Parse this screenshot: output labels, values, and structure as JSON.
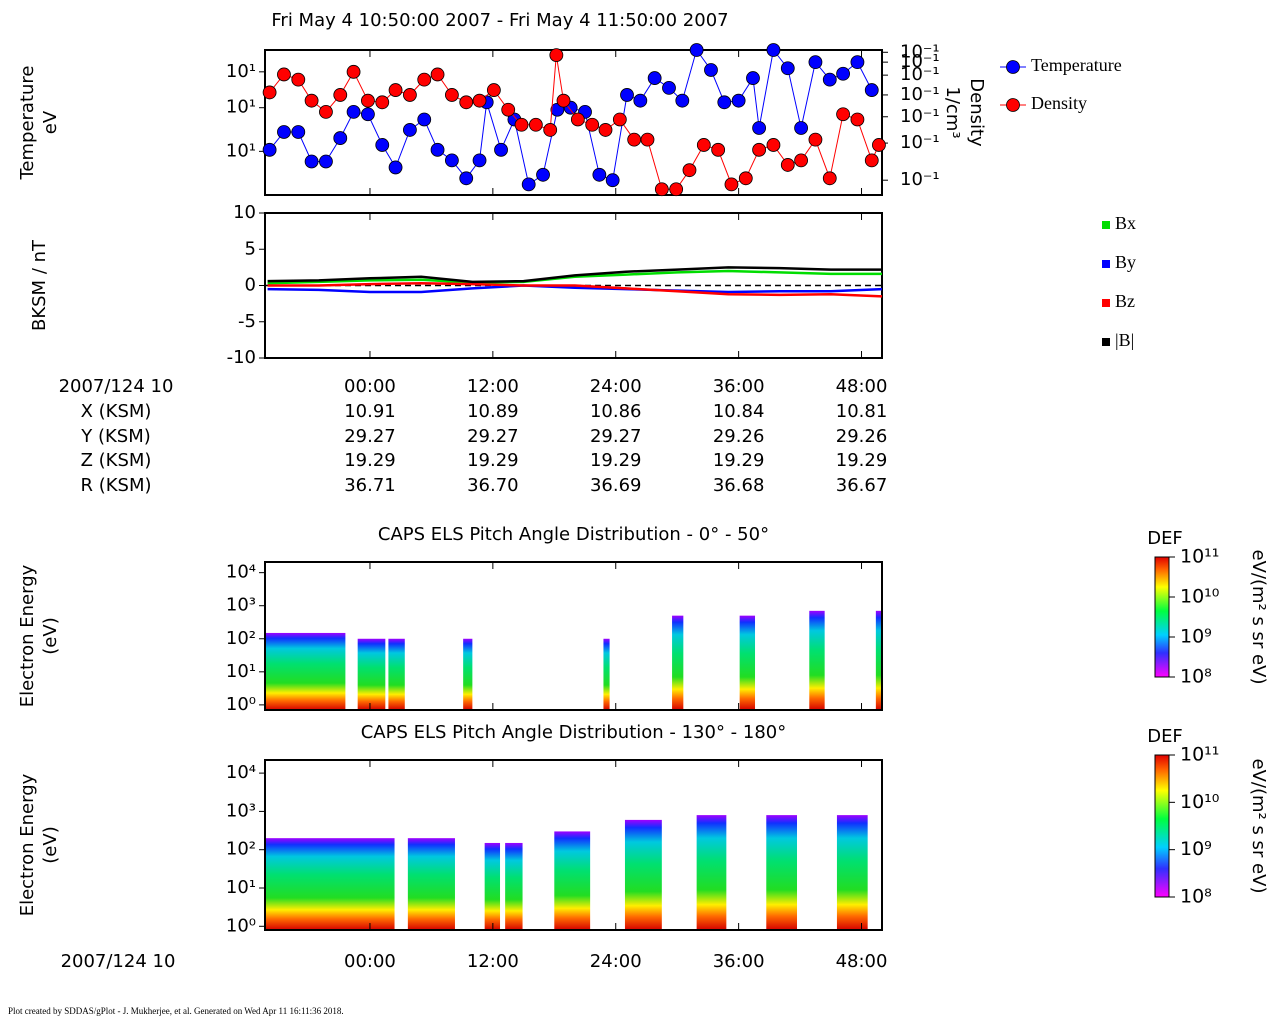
{
  "title": "Fri May 4 10:50:00 2007 - Fri May 4 11:50:00 2007",
  "footer": "Plot created by SDDAS/gPlot - J. Mukherjee, et al.  Generated on Wed Apr 11 16:11:36 2018.",
  "ephemeris": {
    "rows": [
      {
        "label": "2007/124 10",
        "values": [
          "00:00",
          "12:00",
          "24:00",
          "36:00",
          "48:00"
        ]
      },
      {
        "label": "X (KSM)",
        "values": [
          "10.91",
          "10.89",
          "10.86",
          "10.84",
          "10.81"
        ]
      },
      {
        "label": "Y (KSM)",
        "values": [
          "29.27",
          "29.27",
          "29.27",
          "29.26",
          "29.26"
        ]
      },
      {
        "label": "Z (KSM)",
        "values": [
          "19.29",
          "19.29",
          "19.29",
          "19.29",
          "19.29"
        ]
      },
      {
        "label": "R (KSM)",
        "values": [
          "36.71",
          "36.70",
          "36.69",
          "36.68",
          "36.67"
        ]
      }
    ]
  },
  "chart_data": [
    {
      "type": "line",
      "ylabel": [
        "Temperature",
        "eV"
      ],
      "y2label": [
        "Density",
        "1/cm³"
      ],
      "xlim": [
        -10.25,
        50
      ],
      "xticks": [
        0,
        12,
        24,
        36,
        48
      ],
      "log": true,
      "ylim": [
        1,
        100
      ],
      "yticks": [
        {
          "value": 50,
          "label": "10¹"
        },
        {
          "value": 16,
          "label": "10¹"
        },
        {
          "value": 4,
          "label": "10¹"
        }
      ],
      "y2lim": [
        0.01,
        1
      ],
      "y2ticks": [
        {
          "value": 0.93,
          "label": "10⁻¹"
        },
        {
          "value": 0.68,
          "label": "10⁻¹"
        },
        {
          "value": 0.45,
          "label": "10⁻¹"
        },
        {
          "value": 0.24,
          "label": "10⁻¹"
        },
        {
          "value": 0.12,
          "label": "10⁻¹"
        },
        {
          "value": 0.052,
          "label": "10⁻¹"
        },
        {
          "value": 0.016,
          "label": "10⁻¹"
        }
      ],
      "series": [
        {
          "name": "Temperature",
          "color": "#0000ff",
          "marker": "circle",
          "x": [
            -9.8,
            -8.4,
            -7.0,
            -5.7,
            -4.3,
            -2.9,
            -1.6,
            -0.2,
            1.2,
            2.5,
            3.9,
            5.3,
            6.6,
            8.0,
            9.4,
            10.7,
            11.4,
            12.8,
            14.1,
            15.5,
            16.9,
            18.3,
            19.6,
            21.0,
            22.4,
            23.7,
            25.1,
            26.4,
            27.8,
            29.2,
            30.5,
            31.9,
            33.3,
            34.6,
            36.0,
            37.4,
            38.0,
            39.4,
            40.8,
            42.1,
            43.5,
            44.9,
            46.2,
            47.6,
            49.0
          ],
          "values": [
            4.2,
            7.4,
            7.4,
            2.9,
            2.9,
            6.1,
            14,
            13,
            4.9,
            2.4,
            7.9,
            11,
            4.2,
            3.0,
            1.7,
            3.0,
            19,
            4.2,
            11,
            1.4,
            1.9,
            15,
            16,
            14,
            1.9,
            1.6,
            24,
            20,
            41,
            30,
            20,
            100,
            53,
            19,
            20,
            41,
            8.4,
            100,
            56,
            8.4,
            68,
            39,
            47,
            68,
            28
          ]
        },
        {
          "name": "Density",
          "color": "#ff0000",
          "marker": "circle",
          "axis": "y2",
          "x": [
            -9.8,
            -8.4,
            -7.0,
            -5.7,
            -4.3,
            -2.9,
            -1.6,
            -0.2,
            1.2,
            2.5,
            3.9,
            5.3,
            6.6,
            8.0,
            9.4,
            10.7,
            12.1,
            13.5,
            14.8,
            16.2,
            17.6,
            18.2,
            18.9,
            20.3,
            21.7,
            23.0,
            24.4,
            25.8,
            27.1,
            28.5,
            29.9,
            31.2,
            32.6,
            34.0,
            35.3,
            36.7,
            38.0,
            39.4,
            40.8,
            42.1,
            43.5,
            44.9,
            46.2,
            47.6,
            49.0,
            49.7
          ],
          "values": [
            0.26,
            0.46,
            0.39,
            0.2,
            0.14,
            0.24,
            0.5,
            0.2,
            0.19,
            0.28,
            0.24,
            0.39,
            0.46,
            0.24,
            0.19,
            0.2,
            0.28,
            0.15,
            0.093,
            0.093,
            0.079,
            0.85,
            0.2,
            0.11,
            0.093,
            0.079,
            0.11,
            0.058,
            0.058,
            0.012,
            0.012,
            0.022,
            0.049,
            0.042,
            0.014,
            0.017,
            0.042,
            0.049,
            0.026,
            0.03,
            0.058,
            0.017,
            0.13,
            0.11,
            0.03,
            0.049
          ]
        }
      ]
    },
    {
      "type": "line",
      "ylabel": [
        "BKSM / nT"
      ],
      "xlim": [
        -10.25,
        50
      ],
      "xticks": [
        0,
        12,
        24,
        36,
        48
      ],
      "ylim": [
        -10,
        10
      ],
      "yticks": [
        -10,
        -5,
        0,
        5,
        10
      ],
      "zero_line": true,
      "x": [
        -10,
        -5,
        0,
        5,
        10,
        15,
        20,
        25,
        30,
        35,
        40,
        45,
        50
      ],
      "series": [
        {
          "name": "Bx",
          "color": "#00dd00",
          "values": [
            0.3,
            0.5,
            0.7,
            0.8,
            0.4,
            0.5,
            1.2,
            1.5,
            1.8,
            2.0,
            1.8,
            1.6,
            1.6
          ]
        },
        {
          "name": "By",
          "color": "#0000ff",
          "values": [
            -0.5,
            -0.6,
            -0.9,
            -0.9,
            -0.4,
            0,
            -0.3,
            -0.5,
            -0.7,
            -0.9,
            -0.8,
            -0.8,
            -0.5
          ]
        },
        {
          "name": "Bz",
          "color": "#ff0000",
          "values": [
            0,
            0,
            0.2,
            0.3,
            0.2,
            0,
            0,
            -0.4,
            -0.8,
            -1.2,
            -1.3,
            -1.2,
            -1.5
          ]
        },
        {
          "name": "|B|",
          "color": "#000000",
          "values": [
            0.6,
            0.7,
            1.0,
            1.2,
            0.5,
            0.6,
            1.4,
            1.9,
            2.2,
            2.5,
            2.4,
            2.2,
            2.2
          ]
        }
      ]
    },
    {
      "type": "spectrogram",
      "title": "CAPS ELS Pitch Angle Distribution - 0° - 50°",
      "ylabel": [
        "Electron Energy",
        "(eV)"
      ],
      "xlim": [
        -10.25,
        50
      ],
      "xticks": [
        0,
        12,
        24,
        36,
        48
      ],
      "log": true,
      "ylim": [
        0.7,
        21000
      ],
      "yticks": [
        {
          "value": 1,
          "label": "10⁰"
        },
        {
          "value": 10,
          "label": "10¹"
        },
        {
          "value": 100,
          "label": "10²"
        },
        {
          "value": 1000,
          "label": "10³"
        },
        {
          "value": 10000,
          "label": "10⁴"
        }
      ],
      "segments": [
        {
          "start": -10.2,
          "end": -2.4,
          "cutoff": 150
        },
        {
          "start": -1.2,
          "end": 1.5,
          "cutoff": 100
        },
        {
          "start": 1.8,
          "end": 3.4,
          "cutoff": 100
        },
        {
          "start": 9.1,
          "end": 10.0,
          "cutoff": 100
        },
        {
          "start": 22.8,
          "end": 23.4,
          "cutoff": 100
        },
        {
          "start": 29.5,
          "end": 30.6,
          "cutoff": 500
        },
        {
          "start": 36.1,
          "end": 37.6,
          "cutoff": 500
        },
        {
          "start": 42.9,
          "end": 44.4,
          "cutoff": 700
        },
        {
          "start": 49.4,
          "end": 50,
          "cutoff": 700
        }
      ],
      "colorbar": {
        "label": "DEF",
        "unit": "eV/(m² s sr eV)",
        "clim": [
          100000000,
          100000000000
        ],
        "ticks": [
          {
            "value": 100000000,
            "label": "10⁸"
          },
          {
            "value": 1000000000,
            "label": "10⁹"
          },
          {
            "value": 10000000000,
            "label": "10¹⁰"
          },
          {
            "value": 100000000000,
            "label": "10¹¹"
          }
        ]
      }
    },
    {
      "type": "spectrogram",
      "title": "CAPS ELS Pitch Angle Distribution - 130° - 180°",
      "ylabel": [
        "Electron Energy",
        "(eV)"
      ],
      "xlabel": "2007/124 10",
      "xlim": [
        -10.25,
        50
      ],
      "xticks": [
        {
          "value": 0,
          "label": "00:00"
        },
        {
          "value": 12,
          "label": "12:00"
        },
        {
          "value": 24,
          "label": "24:00"
        },
        {
          "value": 36,
          "label": "36:00"
        },
        {
          "value": 48,
          "label": "48:00"
        }
      ],
      "log": true,
      "ylim": [
        0.8,
        22000
      ],
      "yticks": [
        {
          "value": 1,
          "label": "10⁰"
        },
        {
          "value": 10,
          "label": "10¹"
        },
        {
          "value": 100,
          "label": "10²"
        },
        {
          "value": 1000,
          "label": "10³"
        },
        {
          "value": 10000,
          "label": "10⁴"
        }
      ],
      "segments": [
        {
          "start": -10.2,
          "end": 2.4,
          "cutoff": 200
        },
        {
          "start": 3.7,
          "end": 8.3,
          "cutoff": 200
        },
        {
          "start": 11.2,
          "end": 12.7,
          "cutoff": 150
        },
        {
          "start": 13.2,
          "end": 14.9,
          "cutoff": 150
        },
        {
          "start": 18.0,
          "end": 21.5,
          "cutoff": 300
        },
        {
          "start": 24.9,
          "end": 28.5,
          "cutoff": 600
        },
        {
          "start": 31.9,
          "end": 34.8,
          "cutoff": 800
        },
        {
          "start": 38.7,
          "end": 41.7,
          "cutoff": 800
        },
        {
          "start": 45.6,
          "end": 48.6,
          "cutoff": 800
        }
      ],
      "colorbar": {
        "label": "DEF",
        "unit": "eV/(m² s sr eV)",
        "clim": [
          100000000,
          100000000000
        ],
        "ticks": [
          {
            "value": 100000000,
            "label": "10⁸"
          },
          {
            "value": 1000000000,
            "label": "10⁹"
          },
          {
            "value": 10000000000,
            "label": "10¹⁰"
          },
          {
            "value": 100000000000,
            "label": "10¹¹"
          }
        ]
      }
    }
  ]
}
